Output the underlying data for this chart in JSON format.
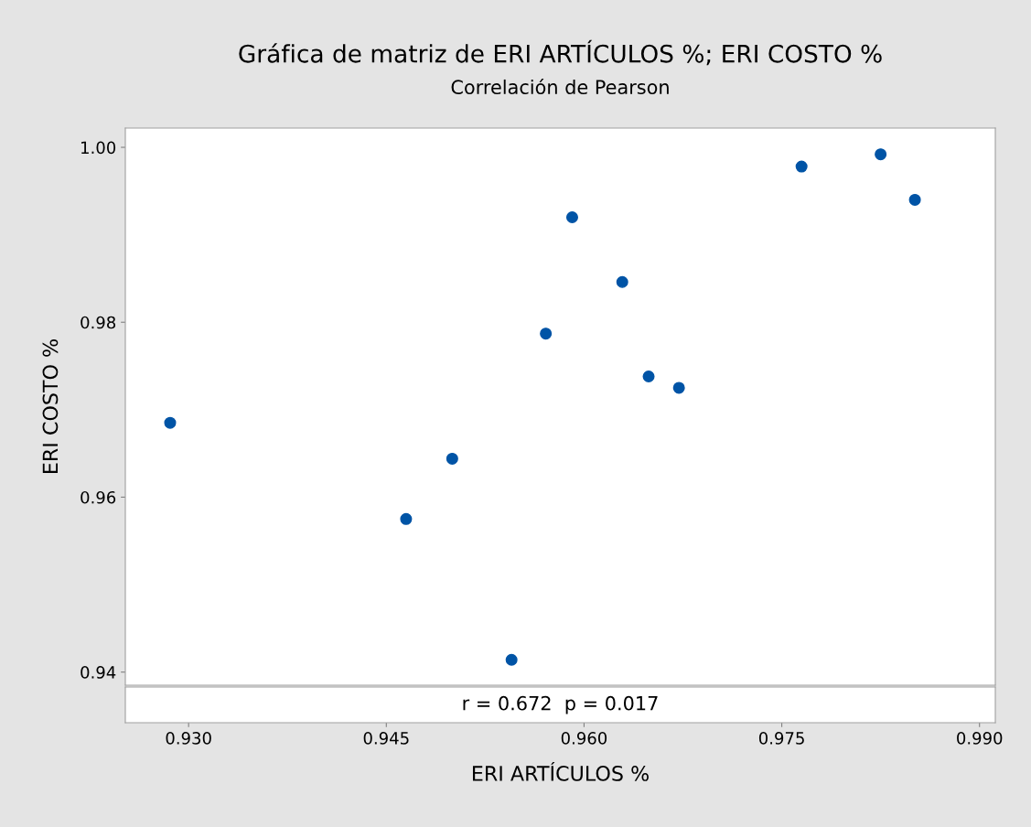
{
  "chart_data": {
    "type": "scatter",
    "title": "Gráfica de matriz de ERI ARTÍCULOS %; ERI COSTO %",
    "subtitle": "Correlación de Pearson",
    "xlabel": "ERI ARTÍCULOS %",
    "ylabel": "ERI COSTO %",
    "annotations": [
      "r = 0.672  p = 0.017"
    ],
    "series": [
      {
        "color": "#0054a6",
        "x": [
          0.9286,
          0.9465,
          0.95,
          0.9545,
          0.9571,
          0.9591,
          0.9629,
          0.9649,
          0.9672,
          0.9765,
          0.9825,
          0.9851
        ],
        "values": [
          0.9685,
          0.9575,
          0.9644,
          0.9414,
          0.9787,
          0.992,
          0.9846,
          0.9738,
          0.9725,
          0.9978,
          0.9992,
          0.994
        ]
      }
    ],
    "xlim": [
      0.9252,
      0.9912
    ],
    "ylim": [
      0.9385,
      1.0022
    ],
    "xticks": [
      {
        "value": 0.93,
        "label": "0.930"
      },
      {
        "value": 0.945,
        "label": "0.945"
      },
      {
        "value": 0.96,
        "label": "0.960"
      },
      {
        "value": 0.975,
        "label": "0.975"
      },
      {
        "value": 0.99,
        "label": "0.990"
      }
    ],
    "yticks": [
      {
        "value": 0.94,
        "label": "0.94"
      },
      {
        "value": 0.96,
        "label": "0.96"
      },
      {
        "value": 0.98,
        "label": "0.98"
      },
      {
        "value": 1.0,
        "label": "1.00"
      }
    ],
    "marker": "circle",
    "grid": false
  }
}
